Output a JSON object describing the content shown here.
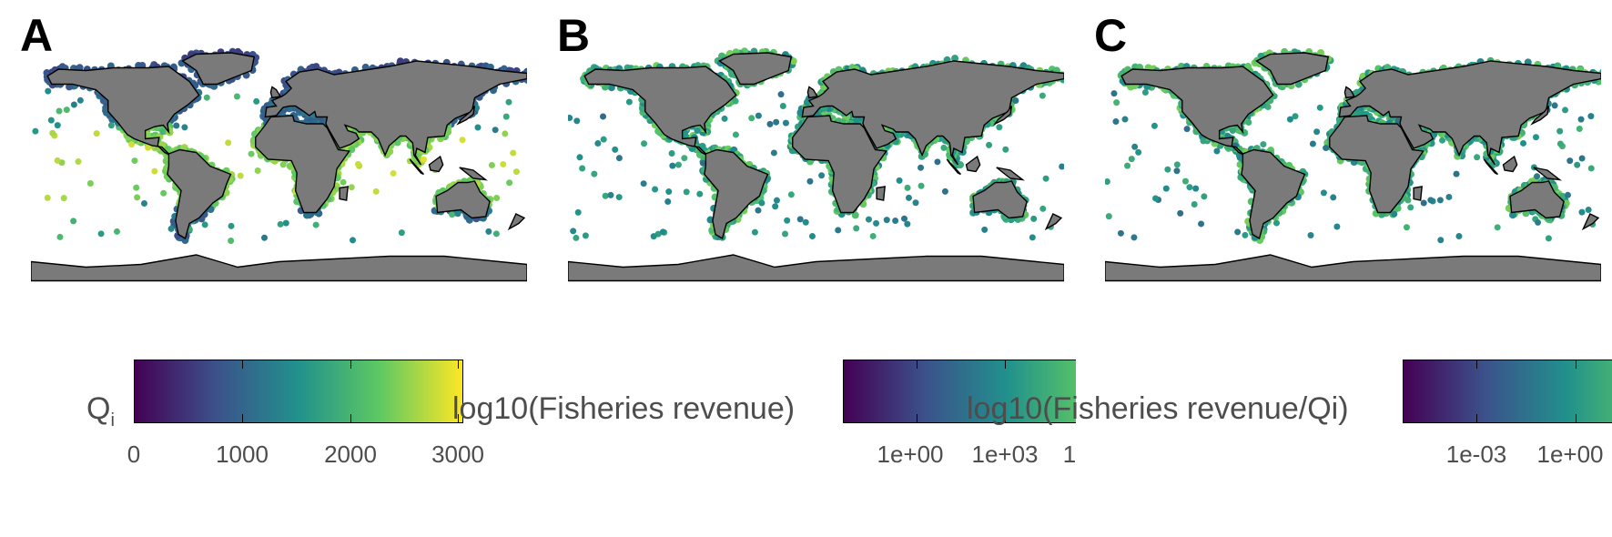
{
  "panels": [
    {
      "letter": "A",
      "colorbar_title": "Q",
      "colorbar_title_sub": "i",
      "tick_labels": [
        "0",
        "1000",
        "2000",
        "3000"
      ],
      "color_range": [
        0,
        3000
      ]
    },
    {
      "letter": "B",
      "colorbar_title": "log10(Fisheries revenue)",
      "colorbar_title_sub": "",
      "tick_labels": [
        "1e+00",
        "1e+03",
        "1"
      ]
    },
    {
      "letter": "C",
      "colorbar_title": "log10(Fisheries revenue/Qi)",
      "colorbar_title_sub": "",
      "tick_labels": [
        "1e-03",
        "1e+00"
      ]
    }
  ],
  "colors": {
    "land": "#7a7a7a",
    "border": "#000000",
    "viridis": [
      "#440154",
      "#3b528b",
      "#21918c",
      "#5ec962",
      "#fde725"
    ]
  }
}
